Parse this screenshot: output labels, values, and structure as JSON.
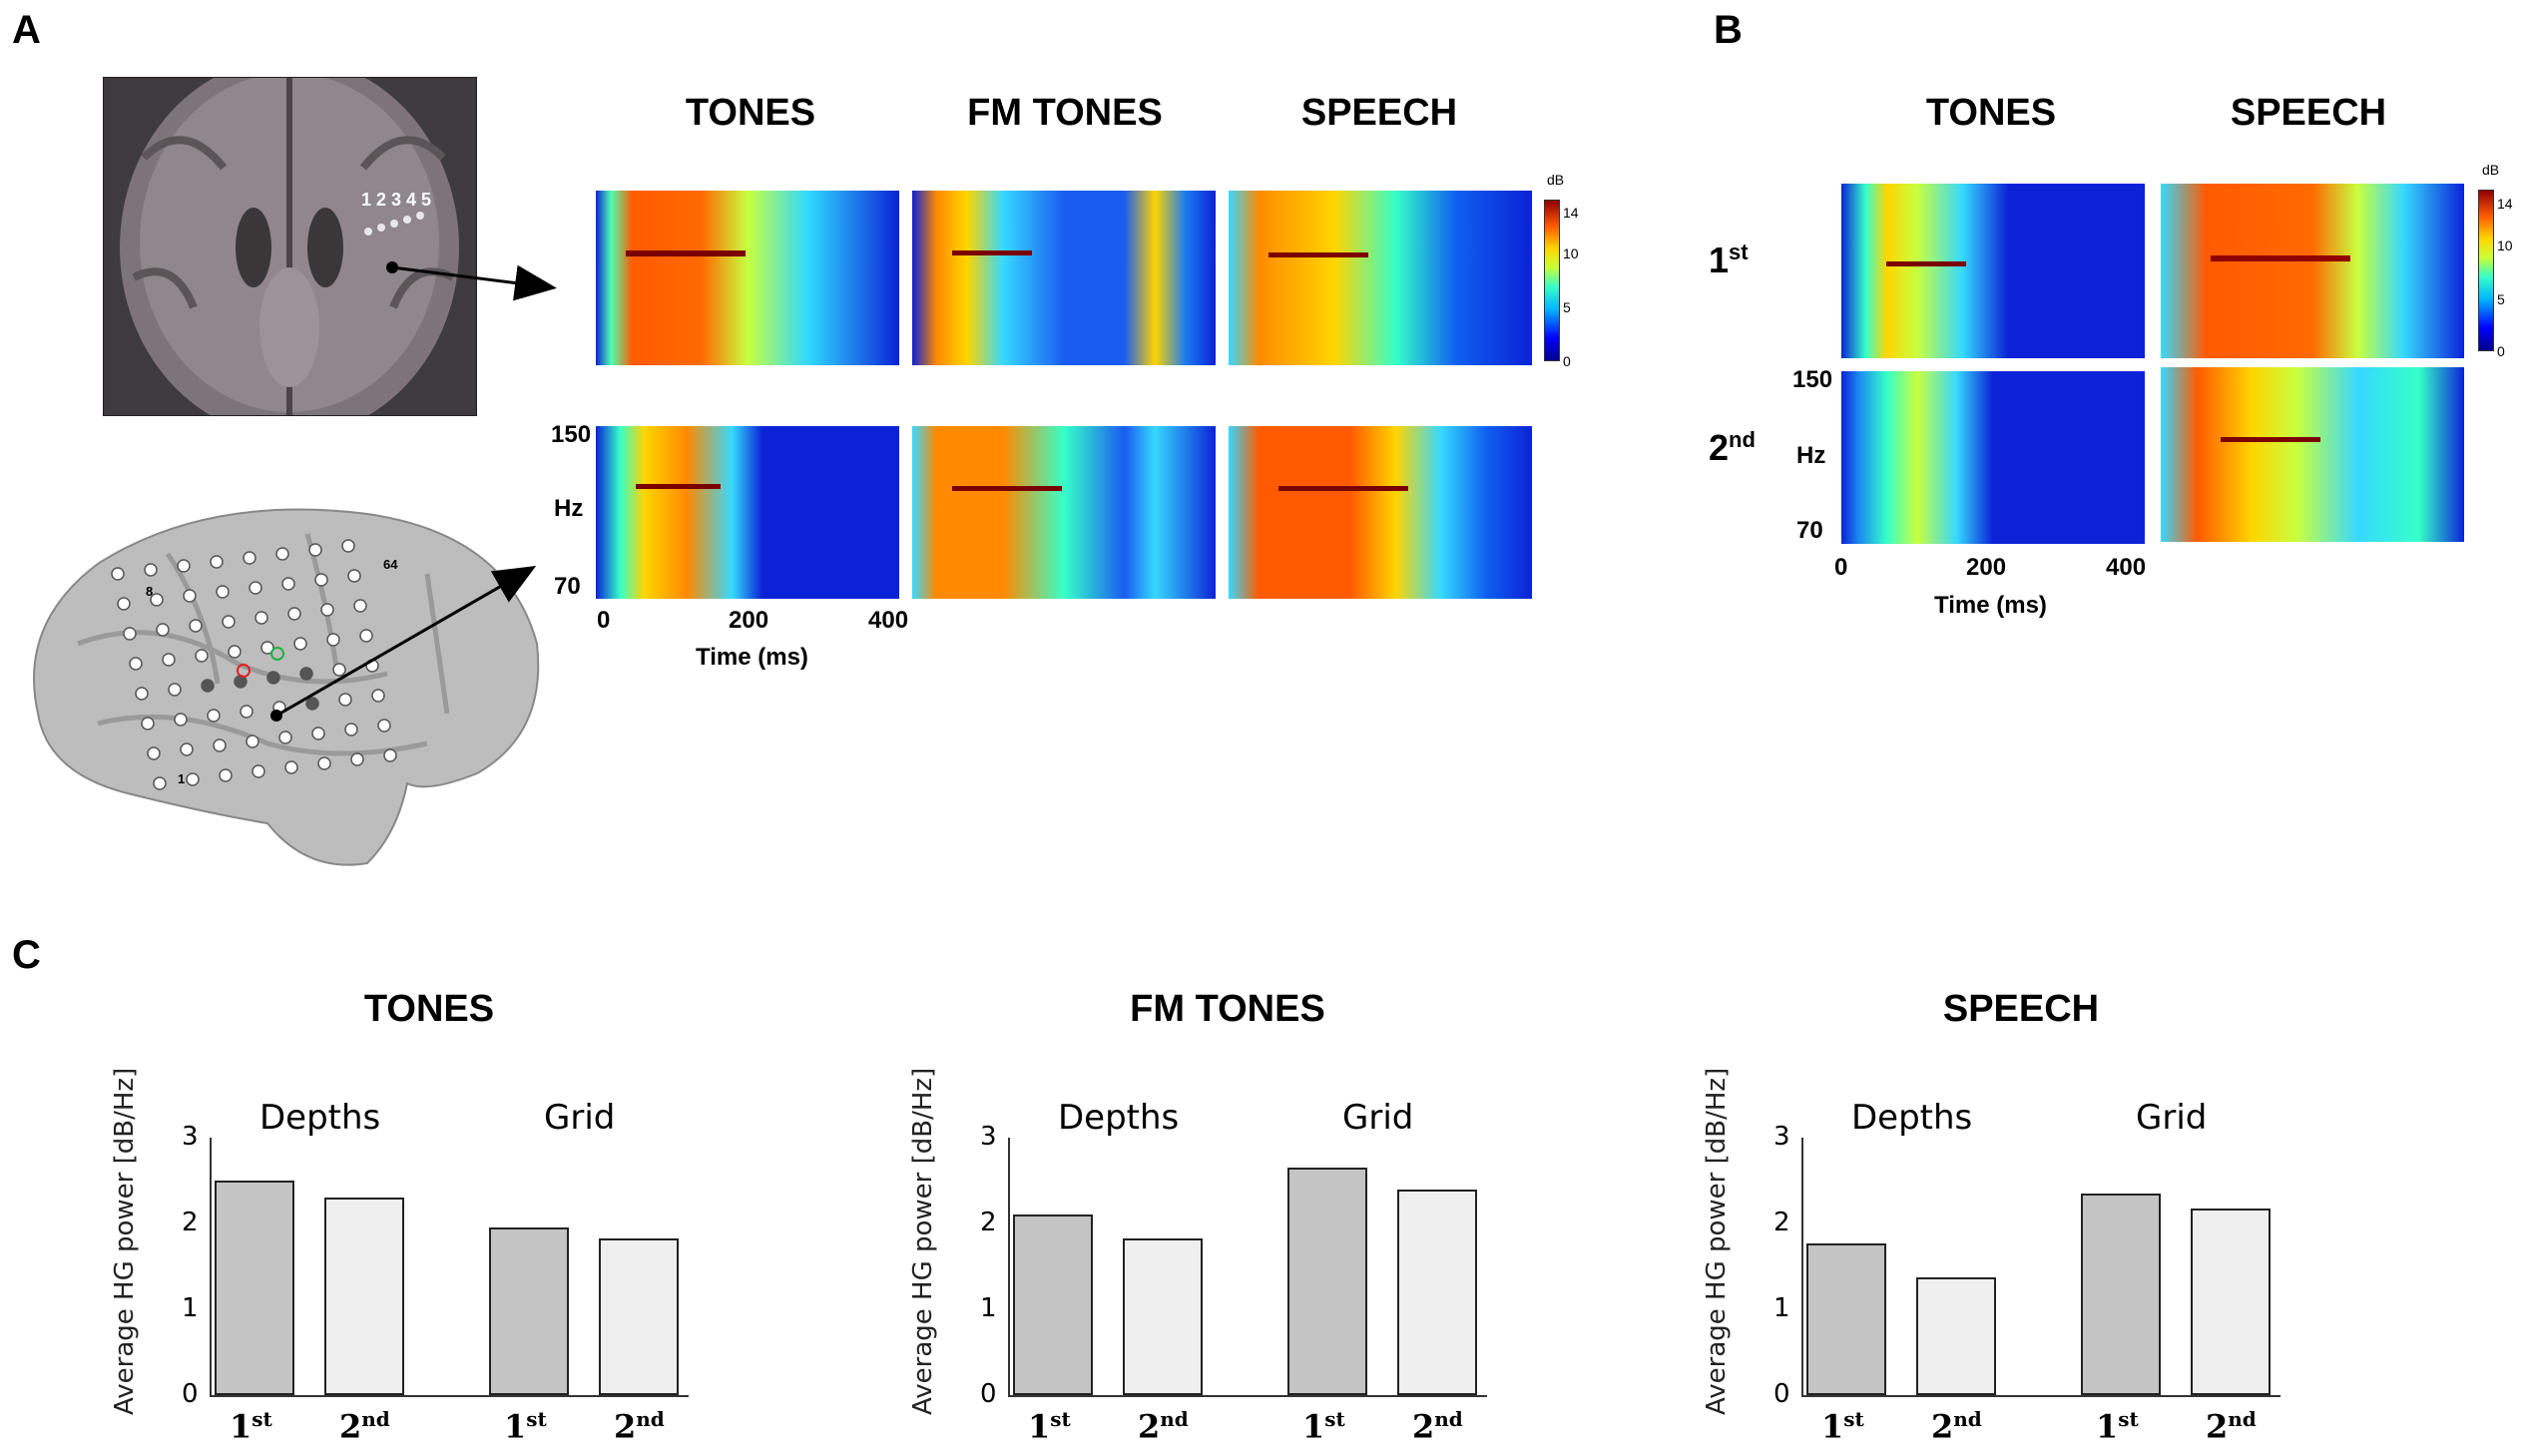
{
  "panels": {
    "a": "A",
    "b": "B",
    "c": "C"
  },
  "panel_a": {
    "conditions": [
      "TONES",
      "FM TONES",
      "SPEECH"
    ],
    "electrode_numbers": "1 2 3 4 5",
    "grid_labels": {
      "g8": "8",
      "g64": "64",
      "g1": "1"
    },
    "y_top": "150",
    "y_unit": "Hz",
    "y_bottom": "70",
    "x_ticks": [
      "0",
      "200",
      "400"
    ],
    "x_label": "Time (ms)",
    "colorbar": {
      "unit": "dB",
      "ticks": [
        "14",
        "10",
        "5",
        "0"
      ]
    }
  },
  "panel_b": {
    "conditions": [
      "TONES",
      "SPEECH"
    ],
    "rows": [
      {
        "ord": "1",
        "sup": "st"
      },
      {
        "ord": "2",
        "sup": "nd"
      }
    ],
    "y_top": "150",
    "y_unit": "Hz",
    "y_bottom": "70",
    "x_ticks": [
      "0",
      "200",
      "400"
    ],
    "x_label": "Time (ms)",
    "colorbar": {
      "unit": "dB",
      "ticks": [
        "14",
        "10",
        "5",
        "0"
      ]
    }
  },
  "panel_c": {
    "ylabel": "Average HG power [dB/Hz]",
    "yticks": [
      "0",
      "1",
      "2",
      "3"
    ],
    "groups": [
      "Depths",
      "Grid"
    ],
    "xcats": [
      {
        "ord": "1",
        "sup": "st"
      },
      {
        "ord": "2",
        "sup": "nd"
      },
      {
        "ord": "1",
        "sup": "st"
      },
      {
        "ord": "2",
        "sup": "nd"
      }
    ],
    "colors": {
      "first": "#c4c4c4",
      "second": "#efefef"
    }
  },
  "chart_data": [
    {
      "type": "bar",
      "title": "TONES",
      "categories": [
        "Depths 1st",
        "Depths 2nd",
        "Grid 1st",
        "Grid 2nd"
      ],
      "values": [
        2.5,
        2.3,
        1.95,
        1.83
      ],
      "ylabel": "Average HG power [dB/Hz]",
      "ylim": [
        0,
        3
      ]
    },
    {
      "type": "bar",
      "title": "FM TONES",
      "categories": [
        "Depths 1st",
        "Depths 2nd",
        "Grid 1st",
        "Grid 2nd"
      ],
      "values": [
        2.1,
        1.82,
        2.65,
        2.4
      ],
      "ylabel": "Average HG power [dB/Hz]",
      "ylim": [
        0,
        3
      ]
    },
    {
      "type": "bar",
      "title": "SPEECH",
      "categories": [
        "Depths 1st",
        "Depths 2nd",
        "Grid 1st",
        "Grid 2nd"
      ],
      "values": [
        1.77,
        1.37,
        2.35,
        2.17
      ],
      "ylabel": "Average HG power [dB/Hz]",
      "ylim": [
        0,
        3
      ]
    }
  ]
}
